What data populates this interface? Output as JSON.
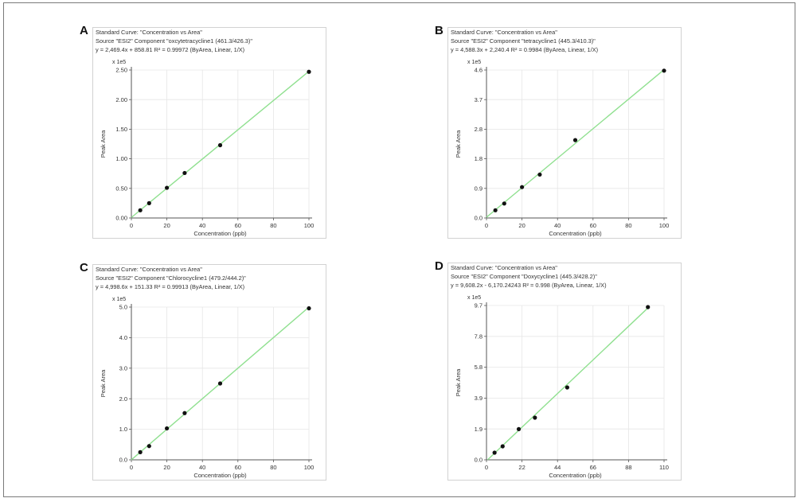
{
  "style": {
    "line_color": "#90e090",
    "grid_color": "#e6e6e6",
    "point_color": "#111111",
    "axis_color": "#555555"
  },
  "panels": [
    {
      "letter": "A",
      "header": {
        "line1": "Standard Curve: \"Concentration vs Area\"",
        "line2": "Source \"ESI2\" Component \"oxcytetracycline1 (461.3/426.3)\"",
        "line3": "y = 2,469.4x + 858.81    R² = 0.99972  (ByArea, Linear, 1/X)"
      },
      "chart_data": {
        "type": "scatter",
        "title": "",
        "xlabel": "Concentration (ppb)",
        "ylabel": "Peak Area",
        "y_multiplier": "x 1e5",
        "xlim": [
          0,
          100
        ],
        "ylim": [
          0,
          2.5
        ],
        "x_ticks": [
          "0",
          "20",
          "40",
          "60",
          "80",
          "100"
        ],
        "x_tick_values": [
          0,
          20,
          40,
          60,
          80,
          100
        ],
        "y_ticks": [
          "0.00",
          "0.50",
          "1.00",
          "1.50",
          "2.00",
          "2.50"
        ],
        "y_tick_values": [
          0,
          0.5,
          1.0,
          1.5,
          2.0,
          2.5
        ],
        "points": {
          "x": [
            5,
            10,
            20,
            30,
            50,
            100
          ],
          "y": [
            0.13,
            0.25,
            0.51,
            0.76,
            1.23,
            2.47
          ]
        },
        "fit": {
          "slope": 0.024694,
          "intercept": 0.0085881
        },
        "grid": true
      }
    },
    {
      "letter": "B",
      "header": {
        "line1": "Standard Curve: \"Concentration vs Area\"",
        "line2": "Source \"ESI2\" Component \"tetracycline1 (445.3/410.3)\"",
        "line3": "y = 4,588.3x + 2,240.4    R² = 0.9984  (ByArea, Linear, 1/X)"
      },
      "chart_data": {
        "type": "scatter",
        "title": "",
        "xlabel": "Concentration (ppb)",
        "ylabel": "Peak Area",
        "y_multiplier": "x 1e5",
        "xlim": [
          0,
          100
        ],
        "ylim": [
          0,
          4.6
        ],
        "x_ticks": [
          "0",
          "20",
          "40",
          "60",
          "80",
          "100"
        ],
        "x_tick_values": [
          0,
          20,
          40,
          60,
          80,
          100
        ],
        "y_ticks": [
          "0.0",
          "0.9",
          "1.8",
          "2.8",
          "3.7",
          "4.6"
        ],
        "y_tick_values": [
          0,
          0.92,
          1.84,
          2.76,
          3.68,
          4.6
        ],
        "points": {
          "x": [
            5,
            10,
            20,
            30,
            50,
            100
          ],
          "y": [
            0.24,
            0.45,
            0.96,
            1.35,
            2.42,
            4.58
          ]
        },
        "fit": {
          "slope": 0.045883,
          "intercept": 0.022404
        },
        "grid": true
      }
    },
    {
      "letter": "C",
      "header": {
        "line1": "Standard Curve: \"Concentration vs Area\"",
        "line2": "Source \"ESI2\" Component \"Chlorocycline1 (479.2/444.2)\"",
        "line3": "y = 4,998.6x + 151.33    R² = 0.99913  (ByArea, Linear, 1/X)"
      },
      "chart_data": {
        "type": "scatter",
        "title": "",
        "xlabel": "Concentration (ppb)",
        "ylabel": "Peak Area",
        "y_multiplier": "x 1e5",
        "xlim": [
          0,
          100
        ],
        "ylim": [
          0,
          5.0
        ],
        "x_ticks": [
          "0",
          "20",
          "40",
          "60",
          "80",
          "100"
        ],
        "x_tick_values": [
          0,
          20,
          40,
          60,
          80,
          100
        ],
        "y_ticks": [
          "0.0",
          "1.0",
          "2.0",
          "3.0",
          "4.0",
          "5.0"
        ],
        "y_tick_values": [
          0,
          1.0,
          2.0,
          3.0,
          4.0,
          5.0
        ],
        "points": {
          "x": [
            5,
            10,
            20,
            30,
            50,
            100
          ],
          "y": [
            0.25,
            0.45,
            1.03,
            1.53,
            2.5,
            4.96
          ]
        },
        "fit": {
          "slope": 0.049986,
          "intercept": 0.0015133
        },
        "grid": true
      }
    },
    {
      "letter": "D",
      "header": {
        "line1": "Standard Curve: \"Concentration vs Area\"",
        "line2": "Source \"ESI2\" Component \"Doxycycline1 (445.3/428.2)\"",
        "line3": "y = 9,608.2x - 6,170.24243    R² = 0.998  (ByArea, Linear, 1/X)"
      },
      "chart_data": {
        "type": "scatter",
        "title": "",
        "xlabel": "Concentration (ppb)",
        "ylabel": "Peak Area",
        "y_multiplier": "x 1e5",
        "xlim": [
          0,
          110
        ],
        "ylim": [
          0,
          9.7
        ],
        "x_ticks": [
          "0",
          "22",
          "44",
          "66",
          "88",
          "110"
        ],
        "x_tick_values": [
          0,
          22,
          44,
          66,
          88,
          110
        ],
        "y_ticks": [
          "0.0",
          "1.9",
          "3.9",
          "5.8",
          "7.8",
          "9.7"
        ],
        "y_tick_values": [
          0,
          1.94,
          3.88,
          5.82,
          7.76,
          9.7
        ],
        "points": {
          "x": [
            5,
            10,
            20,
            30,
            50,
            100
          ],
          "y": [
            0.45,
            0.85,
            1.93,
            2.65,
            4.55,
            9.6
          ]
        },
        "fit": {
          "slope": 0.096082,
          "intercept": -0.0617
        },
        "grid": true
      }
    }
  ]
}
